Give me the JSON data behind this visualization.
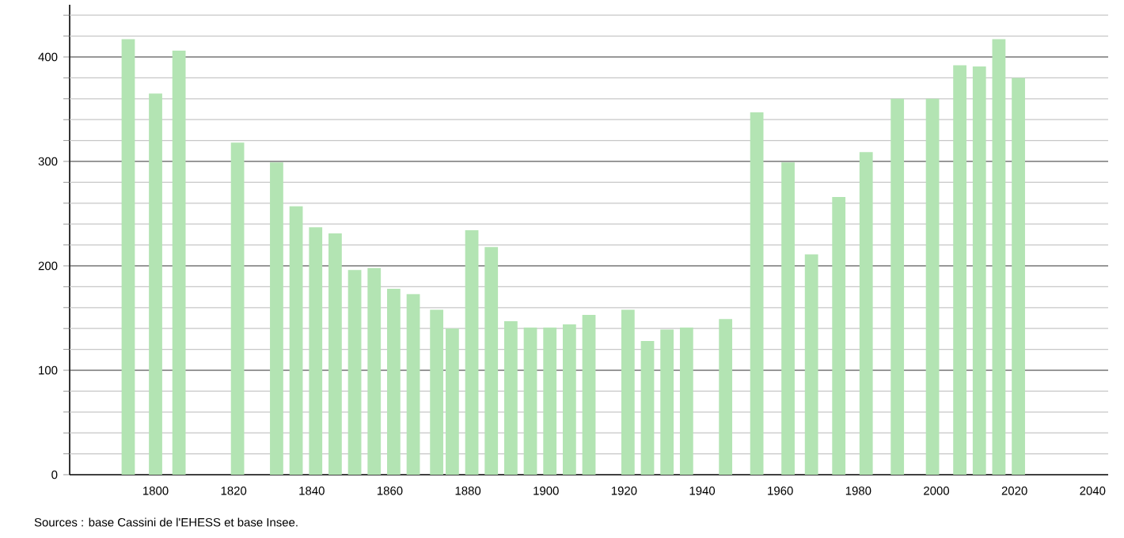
{
  "chart_data": {
    "type": "bar",
    "color": "#b3e4b3",
    "x": [
      1793,
      1800,
      1806,
      1821,
      1831,
      1836,
      1841,
      1846,
      1851,
      1856,
      1861,
      1866,
      1872,
      1876,
      1881,
      1886,
      1891,
      1896,
      1901,
      1906,
      1911,
      1921,
      1926,
      1931,
      1936,
      1946,
      1954,
      1962,
      1968,
      1975,
      1982,
      1990,
      1999,
      2006,
      2011,
      2016,
      2021
    ],
    "values": [
      417,
      365,
      406,
      318,
      299,
      257,
      237,
      231,
      196,
      198,
      178,
      173,
      158,
      140,
      234,
      218,
      147,
      141,
      141,
      144,
      153,
      158,
      128,
      139,
      141,
      149,
      347,
      299,
      211,
      266,
      309,
      360,
      360,
      392,
      391,
      417,
      380
    ],
    "xlim": [
      1778,
      2044
    ],
    "ylim": [
      0,
      450
    ],
    "xticks": [
      1800,
      1820,
      1840,
      1860,
      1880,
      1900,
      1920,
      1940,
      1960,
      1980,
      2000,
      2020,
      2040
    ],
    "yticks": [
      0,
      {
        "value": 20,
        "label": null
      },
      {
        "value": 40,
        "label": null
      },
      {
        "value": 60,
        "label": null
      },
      {
        "value": 80,
        "label": null
      },
      100,
      {
        "value": 120,
        "label": null
      },
      {
        "value": 140,
        "label": null
      },
      {
        "value": 160,
        "label": null
      },
      {
        "value": 180,
        "label": null
      },
      200,
      {
        "value": 220,
        "label": null
      },
      {
        "value": 240,
        "label": null
      },
      {
        "value": 260,
        "label": null
      },
      {
        "value": 280,
        "label": null
      },
      300,
      {
        "value": 320,
        "label": null
      },
      {
        "value": 340,
        "label": null
      },
      {
        "value": 360,
        "label": null
      },
      {
        "value": 380,
        "label": null
      },
      400,
      {
        "value": 420,
        "label": null
      },
      {
        "value": 440,
        "label": null
      }
    ],
    "grid": "y",
    "annotations": [
      "Sources : base Cassini de l'EHESS et base Insee."
    ]
  }
}
